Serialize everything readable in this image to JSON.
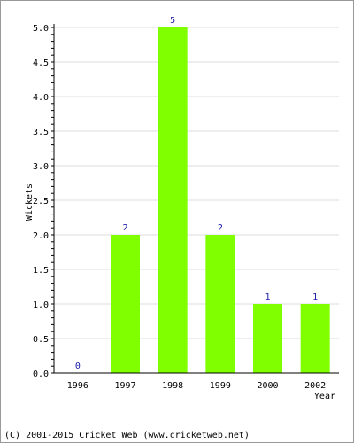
{
  "chart_data": {
    "type": "bar",
    "categories": [
      "1996",
      "1997",
      "1998",
      "1999",
      "2000",
      "2002"
    ],
    "values": [
      0,
      2,
      5,
      2,
      1,
      1
    ],
    "data_labels": [
      "0",
      "2",
      "5",
      "2",
      "1",
      "1"
    ],
    "xlabel": "Year",
    "ylabel": "Wickets",
    "ylim": [
      0,
      5.0
    ],
    "yticks": [
      "0.0",
      "0.5",
      "1.0",
      "1.5",
      "2.0",
      "2.5",
      "3.0",
      "3.5",
      "4.0",
      "4.5",
      "5.0"
    ],
    "grid": true,
    "bar_color": "#80ff00",
    "label_color": "#1a1aa8"
  },
  "footer": "(C) 2001-2015 Cricket Web (www.cricketweb.net)"
}
